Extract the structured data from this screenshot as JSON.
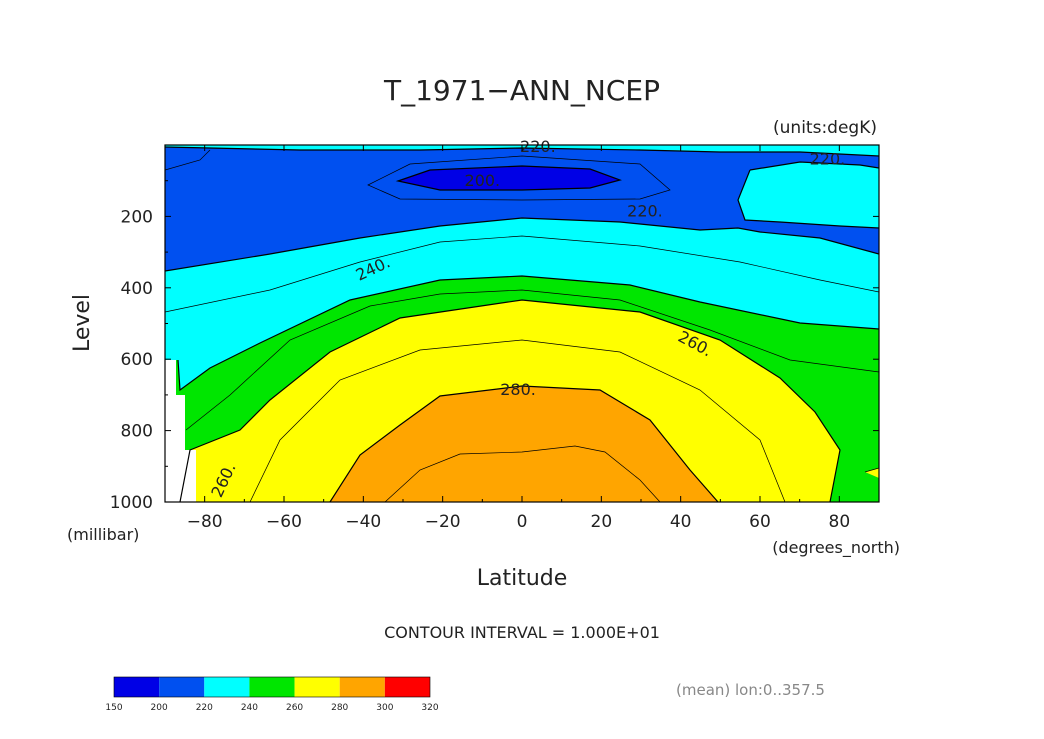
{
  "colors": {
    "level_fills": [
      "#0000e6",
      "#0050f0",
      "#00ffff",
      "#00e600",
      "#ffff00",
      "#ffa500",
      "#ff0000"
    ],
    "contour_line": "#000000",
    "axis": "#000000",
    "text": "#222222"
  },
  "chart_data": {
    "type": "heatmap",
    "subtype": "filled-contour",
    "title": "T_1971−ANN_NCEP",
    "units_label": "(units:degK)",
    "xlabel": "Latitude",
    "x_units_label": "(degrees_north)",
    "ylabel": "Level",
    "y_units_label": "(millibar)",
    "xlim": [
      -90,
      90
    ],
    "ylim": [
      1000,
      0
    ],
    "y_inverted": true,
    "x_ticks": [
      -80,
      -60,
      -40,
      -20,
      0,
      20,
      40,
      60,
      80
    ],
    "x_tick_labels": [
      "−80",
      "−60",
      "−40",
      "−20",
      "0",
      "20",
      "40",
      "60",
      "80"
    ],
    "y_ticks": [
      200,
      400,
      600,
      800,
      1000
    ],
    "y_tick_labels": [
      "200",
      "400",
      "600",
      "800",
      "1000"
    ],
    "contour_interval_text": "CONTOUR INTERVAL = 1.000E+01",
    "contour_levels": [
      200,
      210,
      220,
      230,
      240,
      250,
      260,
      270,
      280,
      290
    ],
    "labeled_contours": [
      {
        "text": "220.",
        "lat": 4,
        "level": 20,
        "rotation": 0
      },
      {
        "text": "200.",
        "lat": -10,
        "level": 115,
        "rotation": 0
      },
      {
        "text": "220.",
        "lat": 77,
        "level": 55,
        "rotation": 0
      },
      {
        "text": "220.",
        "lat": 31,
        "level": 200,
        "rotation": 0
      },
      {
        "text": "240.",
        "lat": -37,
        "level": 360,
        "rotation": -25
      },
      {
        "text": "260.",
        "lat": 43,
        "level": 570,
        "rotation": 28
      },
      {
        "text": "280.",
        "lat": -1,
        "level": 700,
        "rotation": 0
      },
      {
        "text": "260.",
        "lat": -74,
        "level": 945,
        "rotation": -65
      }
    ],
    "colorbar": {
      "boundaries": [
        150,
        200,
        220,
        240,
        260,
        280,
        300,
        320
      ],
      "labels": [
        "150",
        "200",
        "220",
        "240",
        "260",
        "280",
        "300",
        "320"
      ]
    },
    "footnote": "(mean) lon:0..357.5",
    "missing_data_region": "left edge near lat -90 below 600 mb"
  }
}
